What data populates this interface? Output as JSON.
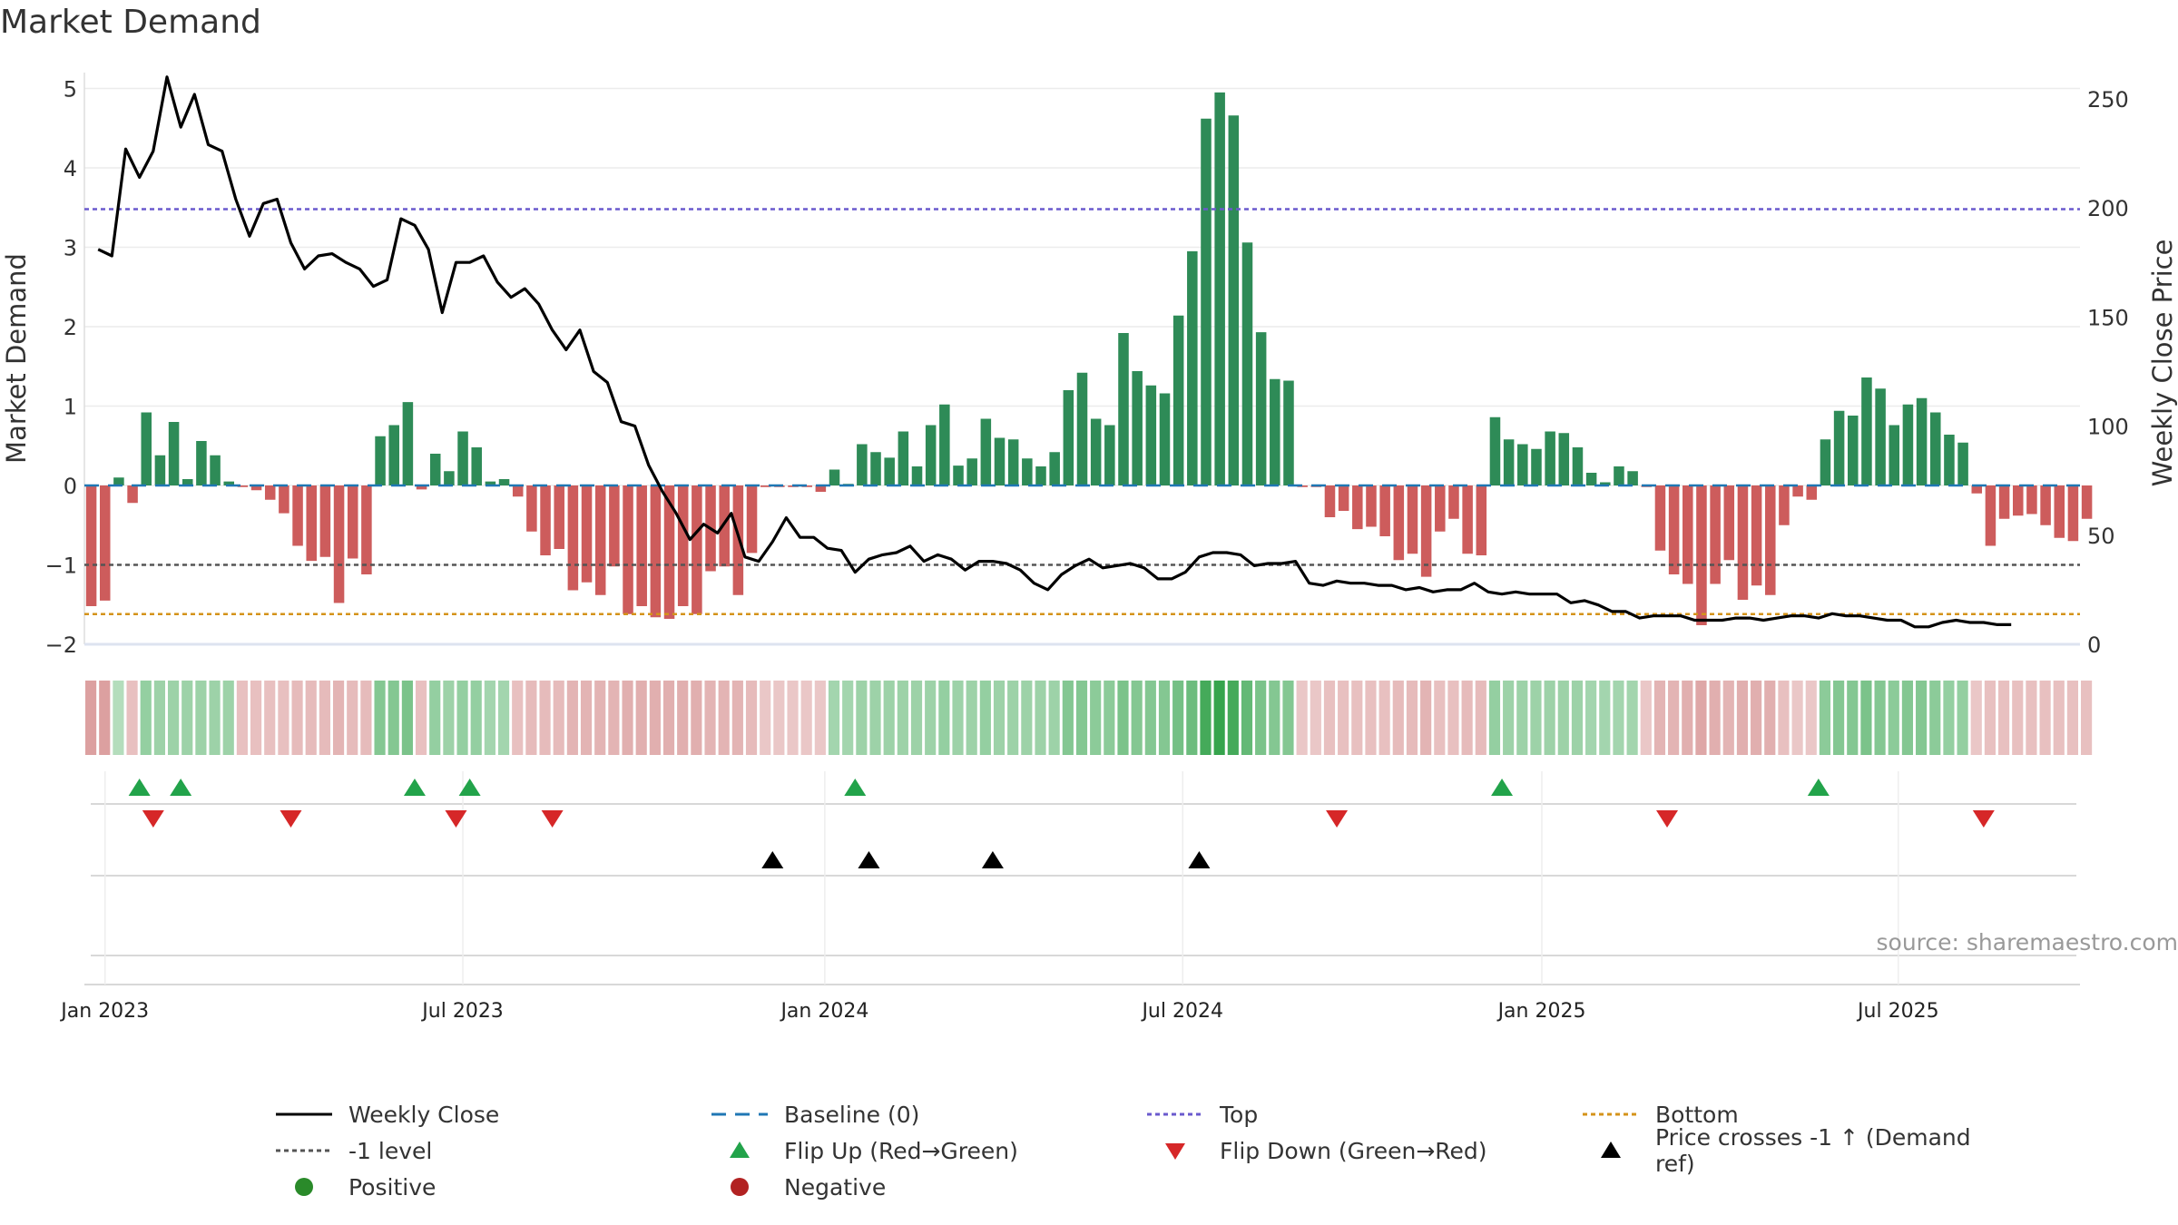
{
  "page": {
    "title": "Market Demand",
    "source": "source: sharemaestro.com"
  },
  "colors": {
    "positive": "#2e8b57",
    "negative": "#cd5c5c",
    "price": "#000000",
    "baseline": "#1f77b4",
    "top": "#6a5acd",
    "bottom": "#d4931a",
    "level": "#555555",
    "flip_up": "#22a34a",
    "flip_down": "#d62728",
    "cross": "#000000",
    "positive_dot": "#2a8a2a",
    "negative_dot": "#b22222"
  },
  "legend": [
    {
      "key": "weekly_close",
      "label": "Weekly Close"
    },
    {
      "key": "baseline",
      "label": "Baseline (0)"
    },
    {
      "key": "top",
      "label": "Top"
    },
    {
      "key": "bottom",
      "label": "Bottom"
    },
    {
      "key": "level",
      "label": "-1 level"
    },
    {
      "key": "flip_up",
      "label": "Flip Up (Red→Green)"
    },
    {
      "key": "flip_down",
      "label": "Flip Down (Green→Red)"
    },
    {
      "key": "cross",
      "label": "Price crosses -1 ↑ (Demand ref)"
    },
    {
      "key": "positive",
      "label": "Positive"
    },
    {
      "key": "negative",
      "label": "Negative"
    }
  ],
  "chart_data": {
    "type": "bar",
    "title": "Market Demand",
    "ylabel": "Market Demand",
    "y2label": "Weekly Close Price",
    "ylim": [
      -2,
      5.2
    ],
    "y2lim": [
      0,
      262
    ],
    "yticks": [
      -2,
      -1,
      0,
      1,
      2,
      3,
      4,
      5
    ],
    "y2ticks": [
      0,
      50,
      100,
      150,
      200,
      250
    ],
    "x_start": "2023-01-01",
    "x_end": "2025-10-01",
    "xticks": [
      {
        "label": "Jan 2023",
        "week": 0
      },
      {
        "label": "Jul 2023",
        "week": 26
      },
      {
        "label": "Jan 2024",
        "week": 52.3
      },
      {
        "label": "Jul 2024",
        "week": 78.3
      },
      {
        "label": "Jan 2025",
        "week": 104.4
      },
      {
        "label": "Jul 2025",
        "week": 130.3
      }
    ],
    "reference_lines": {
      "top": 3.48,
      "bottom": -1.62,
      "level": -1,
      "baseline": 0
    },
    "demand": [
      -1.52,
      -1.45,
      0.1,
      -0.22,
      0.92,
      0.38,
      0.8,
      0.08,
      0.56,
      0.38,
      0.05,
      -0.02,
      -0.06,
      -0.18,
      -0.35,
      -0.76,
      -0.95,
      -0.9,
      -1.48,
      -0.92,
      -1.12,
      0.62,
      0.76,
      1.05,
      -0.05,
      0.4,
      0.18,
      0.68,
      0.48,
      0.05,
      0.08,
      -0.14,
      -0.58,
      -0.88,
      -0.8,
      -1.32,
      -1.22,
      -1.38,
      -1.02,
      -1.62,
      -1.52,
      -1.66,
      -1.68,
      -1.52,
      -1.62,
      -1.08,
      -1.02,
      -1.38,
      -0.85,
      -0.02,
      -0.02,
      -0.02,
      -0.02,
      -0.08,
      0.2,
      0.02,
      0.52,
      0.42,
      0.35,
      0.68,
      0.24,
      0.76,
      1.02,
      0.25,
      0.34,
      0.84,
      0.6,
      0.58,
      0.34,
      0.24,
      0.42,
      1.2,
      1.42,
      0.84,
      0.76,
      1.92,
      1.44,
      1.26,
      1.16,
      2.14,
      2.95,
      4.62,
      4.95,
      4.66,
      3.06,
      1.93,
      1.34,
      1.32,
      -0.02,
      -0.02,
      -0.4,
      -0.32,
      -0.55,
      -0.52,
      -0.64,
      -0.94,
      -0.86,
      -1.15,
      -0.58,
      -0.42,
      -0.86,
      -0.88,
      0.86,
      0.58,
      0.52,
      0.46,
      0.68,
      0.66,
      0.48,
      0.16,
      0.04,
      0.24,
      0.18,
      -0.02,
      -0.82,
      -1.12,
      -1.24,
      -1.76,
      -1.24,
      -0.94,
      -1.44,
      -1.26,
      -1.38,
      -0.5,
      -0.14,
      -0.18,
      0.58,
      0.94,
      0.88,
      1.36,
      1.22,
      0.76,
      1.02,
      1.1,
      0.92,
      0.64,
      0.54,
      -0.1,
      -0.76,
      -0.42,
      -0.38,
      -0.36,
      -0.5,
      -0.66,
      -0.7,
      -0.42
    ],
    "weekly_close": [
      181,
      178,
      227,
      214,
      226,
      260,
      237,
      252,
      229,
      226,
      204,
      187,
      202,
      204,
      184,
      172,
      178,
      179,
      175,
      172,
      164,
      167,
      195,
      192,
      181,
      152,
      175,
      175,
      178,
      166,
      159,
      163,
      156,
      144,
      135,
      144,
      125,
      120,
      102,
      100,
      82,
      70,
      60,
      48,
      55,
      51,
      60,
      40,
      38,
      47,
      58,
      49,
      49,
      44,
      43,
      33,
      39,
      41,
      42,
      45,
      38,
      41,
      39,
      34,
      38,
      38,
      37,
      34,
      28,
      25,
      32,
      36,
      39,
      35,
      36,
      37,
      35,
      30,
      30,
      33,
      40,
      42,
      42,
      41,
      36,
      37,
      37,
      38,
      28,
      27,
      29,
      28,
      28,
      27,
      27,
      25,
      26,
      24,
      25,
      25,
      28,
      24,
      23,
      24,
      23,
      23,
      23,
      19,
      20,
      18,
      15,
      15,
      12,
      13,
      13,
      13,
      11,
      11,
      11,
      12,
      12,
      11,
      12,
      13,
      13,
      12,
      14,
      13,
      13,
      12,
      11,
      11,
      8,
      8,
      10,
      11,
      10,
      10,
      9,
      9
    ],
    "heat_strip_intensity": [
      -0.55,
      -0.55,
      0.15,
      -0.3,
      0.35,
      0.3,
      0.3,
      0.3,
      0.3,
      0.3,
      0.3,
      -0.3,
      -0.3,
      -0.3,
      -0.3,
      -0.35,
      -0.35,
      -0.35,
      -0.4,
      -0.35,
      -0.35,
      0.45,
      0.45,
      0.5,
      -0.3,
      0.35,
      0.3,
      0.35,
      0.35,
      0.25,
      0.25,
      -0.3,
      -0.35,
      -0.35,
      -0.35,
      -0.4,
      -0.4,
      -0.4,
      -0.4,
      -0.45,
      -0.45,
      -0.45,
      -0.45,
      -0.45,
      -0.45,
      -0.4,
      -0.4,
      -0.4,
      -0.35,
      -0.25,
      -0.25,
      -0.25,
      -0.25,
      -0.25,
      0.25,
      0.25,
      0.3,
      0.3,
      0.3,
      0.3,
      0.3,
      0.3,
      0.35,
      0.3,
      0.3,
      0.35,
      0.3,
      0.3,
      0.3,
      0.3,
      0.3,
      0.45,
      0.45,
      0.4,
      0.4,
      0.5,
      0.45,
      0.45,
      0.45,
      0.55,
      0.6,
      0.85,
      0.95,
      0.85,
      0.65,
      0.5,
      0.45,
      0.45,
      -0.25,
      -0.25,
      -0.3,
      -0.3,
      -0.3,
      -0.3,
      -0.3,
      -0.35,
      -0.35,
      -0.4,
      -0.3,
      -0.3,
      -0.35,
      -0.35,
      0.35,
      0.3,
      0.3,
      0.3,
      0.3,
      0.3,
      0.3,
      0.25,
      0.25,
      0.25,
      0.25,
      -0.25,
      -0.4,
      -0.4,
      -0.45,
      -0.5,
      -0.45,
      -0.4,
      -0.45,
      -0.45,
      -0.45,
      -0.3,
      -0.25,
      -0.25,
      0.4,
      0.45,
      0.45,
      0.5,
      0.45,
      0.4,
      0.45,
      0.45,
      0.4,
      0.35,
      0.35,
      -0.25,
      -0.3,
      -0.3,
      -0.3,
      -0.3,
      -0.3,
      -0.3,
      -0.3,
      -0.3
    ],
    "flip_up_weeks": [
      2,
      5,
      22,
      26,
      54,
      101,
      124
    ],
    "flip_down_weeks": [
      3,
      13,
      25,
      32,
      89,
      113,
      136
    ],
    "cross_weeks": [
      48,
      55,
      64,
      79
    ],
    "n_weeks": 145,
    "bar_start_week": -1.5
  }
}
